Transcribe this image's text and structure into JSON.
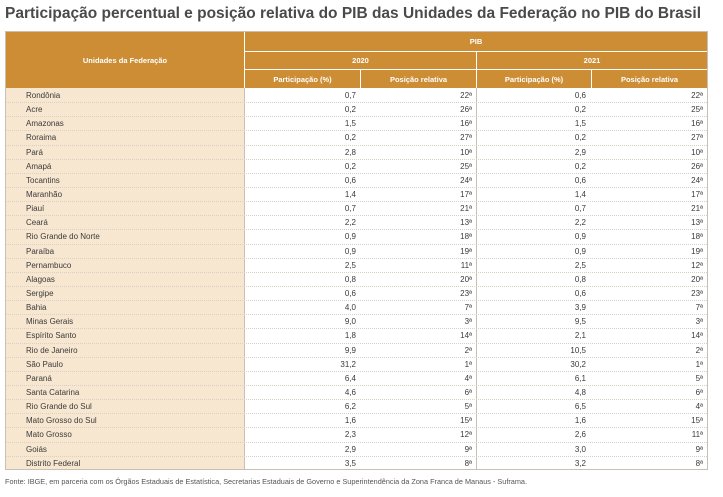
{
  "title": "Participação percentual e posição relativa do PIB das Unidades da Federação no PIB do Brasil",
  "header": {
    "uf_label": "Unidades da Federação",
    "pib_label": "PIB",
    "year_2020": "2020",
    "year_2021": "2021",
    "part_label": "Participação (%)",
    "pos_label": "Posição relativa"
  },
  "rows": [
    {
      "uf": "Rondônia",
      "p2020": "0,7",
      "r2020": "22ª",
      "p2021": "0,6",
      "r2021": "22ª"
    },
    {
      "uf": "Acre",
      "p2020": "0,2",
      "r2020": "26ª",
      "p2021": "0,2",
      "r2021": "25ª"
    },
    {
      "uf": "Amazonas",
      "p2020": "1,5",
      "r2020": "16ª",
      "p2021": "1,5",
      "r2021": "16ª"
    },
    {
      "uf": "Roraima",
      "p2020": "0,2",
      "r2020": "27ª",
      "p2021": "0,2",
      "r2021": "27ª"
    },
    {
      "uf": "Pará",
      "p2020": "2,8",
      "r2020": "10ª",
      "p2021": "2,9",
      "r2021": "10ª"
    },
    {
      "uf": "Amapá",
      "p2020": "0,2",
      "r2020": "25ª",
      "p2021": "0,2",
      "r2021": "26ª"
    },
    {
      "uf": "Tocantins",
      "p2020": "0,6",
      "r2020": "24ª",
      "p2021": "0,6",
      "r2021": "24ª"
    },
    {
      "uf": "Maranhão",
      "p2020": "1,4",
      "r2020": "17ª",
      "p2021": "1,4",
      "r2021": "17ª"
    },
    {
      "uf": "Piauí",
      "p2020": "0,7",
      "r2020": "21ª",
      "p2021": "0,7",
      "r2021": "21ª"
    },
    {
      "uf": "Ceará",
      "p2020": "2,2",
      "r2020": "13ª",
      "p2021": "2,2",
      "r2021": "13ª"
    },
    {
      "uf": "Rio Grande do Norte",
      "p2020": "0,9",
      "r2020": "18ª",
      "p2021": "0,9",
      "r2021": "18ª"
    },
    {
      "uf": "Paraíba",
      "p2020": "0,9",
      "r2020": "19ª",
      "p2021": "0,9",
      "r2021": "19ª"
    },
    {
      "uf": "Pernambuco",
      "p2020": "2,5",
      "r2020": "11ª",
      "p2021": "2,5",
      "r2021": "12ª"
    },
    {
      "uf": "Alagoas",
      "p2020": "0,8",
      "r2020": "20ª",
      "p2021": "0,8",
      "r2021": "20ª"
    },
    {
      "uf": "Sergipe",
      "p2020": "0,6",
      "r2020": "23ª",
      "p2021": "0,6",
      "r2021": "23ª"
    },
    {
      "uf": "Bahia",
      "p2020": "4,0",
      "r2020": "7ª",
      "p2021": "3,9",
      "r2021": "7ª"
    },
    {
      "uf": "Minas Gerais",
      "p2020": "9,0",
      "r2020": "3ª",
      "p2021": "9,5",
      "r2021": "3ª"
    },
    {
      "uf": "Espírito Santo",
      "p2020": "1,8",
      "r2020": "14ª",
      "p2021": "2,1",
      "r2021": "14ª"
    },
    {
      "uf": "Rio de Janeiro",
      "p2020": "9,9",
      "r2020": "2ª",
      "p2021": "10,5",
      "r2021": "2ª"
    },
    {
      "uf": "São Paulo",
      "p2020": "31,2",
      "r2020": "1ª",
      "p2021": "30,2",
      "r2021": "1ª"
    },
    {
      "uf": "Paraná",
      "p2020": "6,4",
      "r2020": "4ª",
      "p2021": "6,1",
      "r2021": "5ª"
    },
    {
      "uf": "Santa Catarina",
      "p2020": "4,6",
      "r2020": "6ª",
      "p2021": "4,8",
      "r2021": "6ª"
    },
    {
      "uf": "Rio Grande do Sul",
      "p2020": "6,2",
      "r2020": "5ª",
      "p2021": "6,5",
      "r2021": "4ª"
    },
    {
      "uf": "Mato Grosso do Sul",
      "p2020": "1,6",
      "r2020": "15ª",
      "p2021": "1,6",
      "r2021": "15ª"
    },
    {
      "uf": "Mato Grosso",
      "p2020": "2,3",
      "r2020": "12ª",
      "p2021": "2,6",
      "r2021": "11ª"
    },
    {
      "uf": "Goiás",
      "p2020": "2,9",
      "r2020": "9ª",
      "p2021": "3,0",
      "r2021": "9ª"
    },
    {
      "uf": "Distrito Federal",
      "p2020": "3,5",
      "r2020": "8ª",
      "p2021": "3,2",
      "r2021": "8ª"
    }
  ],
  "source": "Fonte: IBGE, em parceria com os Órgãos Estaduais de Estatística, Secretarias Estaduais de Governo e Superintendência da Zona Franca de Manaus - Suframa."
}
